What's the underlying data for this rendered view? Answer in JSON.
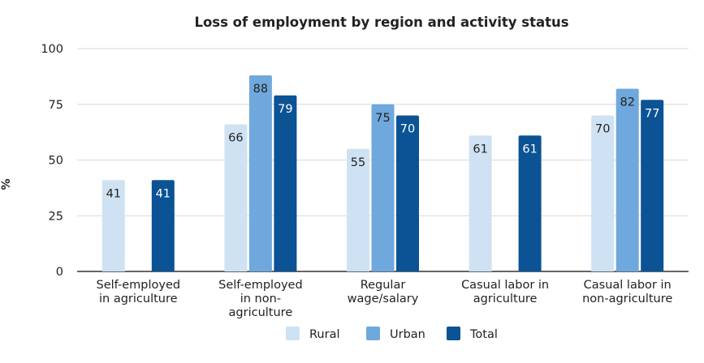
{
  "chart_data": {
    "type": "bar",
    "title": "Loss of employment by region and activity status",
    "xlabel": "",
    "ylabel": "%",
    "ylim": [
      0,
      100
    ],
    "yticks": [
      "0",
      "25",
      "50",
      "75",
      "100"
    ],
    "grid": true,
    "legend_position": "bottom",
    "categories": [
      [
        "Self-employed",
        "in agriculture"
      ],
      [
        "Self-employed",
        "in non-",
        "agriculture"
      ],
      [
        "Regular",
        "wage/salary"
      ],
      [
        "Casual labor in",
        "agriculture"
      ],
      [
        "Casual labor in",
        "non-agriculture"
      ]
    ],
    "series": [
      {
        "name": "Rural",
        "color": "#cfe2f3",
        "label_color": "#222222",
        "values": [
          41,
          66,
          55,
          61,
          70
        ]
      },
      {
        "name": "Urban",
        "color": "#6fa8dc",
        "label_color": "#222222",
        "values": [
          null,
          88,
          75,
          null,
          82
        ]
      },
      {
        "name": "Total",
        "color": "#0b5394",
        "label_color": "#ffffff",
        "values": [
          41,
          79,
          70,
          61,
          77
        ]
      }
    ]
  }
}
